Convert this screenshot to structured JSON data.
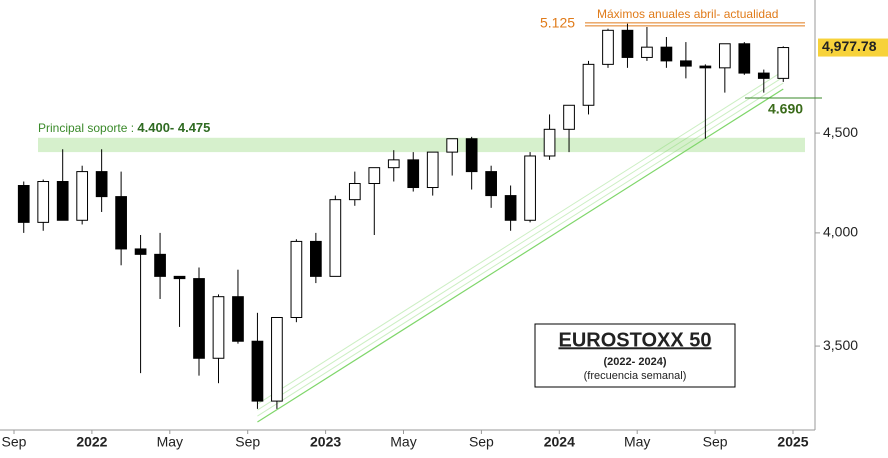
{
  "chart_data": {
    "type": "candlestick",
    "x": [
      "2021-09",
      "2021-10",
      "2021-11",
      "2021-12",
      "2022-01",
      "2022-02",
      "2022-03",
      "2022-04",
      "2022-05",
      "2022-06",
      "2022-07",
      "2022-08",
      "2022-09",
      "2022-10",
      "2022-11",
      "2022-12",
      "2023-01",
      "2023-02",
      "2023-03",
      "2023-04",
      "2023-05",
      "2023-06",
      "2023-07",
      "2023-08",
      "2023-09",
      "2023-10",
      "2023-11",
      "2023-12",
      "2024-01",
      "2024-02",
      "2024-03",
      "2024-04",
      "2024-05",
      "2024-06",
      "2024-07",
      "2024-08",
      "2024-09",
      "2024-10",
      "2024-11",
      "2024-12"
    ],
    "open": [
      4230,
      4050,
      4250,
      4060,
      4300,
      4175,
      3925,
      3900,
      3800,
      3790,
      3450,
      3710,
      3520,
      3280,
      3620,
      3960,
      3800,
      4160,
      4240,
      4320,
      4360,
      4220,
      4400,
      4470,
      4300,
      4180,
      4060,
      4380,
      4520,
      4650,
      4880,
      5080,
      4920,
      4980,
      4900,
      4870,
      4860,
      5000,
      4830,
      4800
    ],
    "high": [
      4250,
      4260,
      4415,
      4330,
      4415,
      4300,
      3990,
      4000,
      3800,
      3840,
      3720,
      3830,
      3640,
      3620,
      3970,
      4000,
      4180,
      4300,
      4320,
      4410,
      4400,
      4390,
      4470,
      4480,
      4330,
      4230,
      4400,
      4600,
      4650,
      4900,
      5090,
      5120,
      5100,
      5040,
      5010,
      4880,
      5000,
      5010,
      4850,
      4985
    ],
    "low": [
      4000,
      4010,
      4080,
      4040,
      4100,
      3850,
      3390,
      3700,
      3580,
      3380,
      3350,
      3510,
      3250,
      3250,
      3600,
      3770,
      3800,
      4130,
      3990,
      4250,
      4200,
      4180,
      4280,
      4210,
      4120,
      4010,
      4050,
      4360,
      4400,
      4600,
      4860,
      4860,
      4900,
      4860,
      4800,
      4470,
      4720,
      4820,
      4720,
      4780
    ],
    "close": [
      4050,
      4250,
      4060,
      4300,
      4175,
      3925,
      3900,
      3800,
      3790,
      3450,
      3710,
      3520,
      3280,
      3620,
      3960,
      3800,
      4160,
      4240,
      4320,
      4360,
      4220,
      4400,
      4470,
      4300,
      4180,
      4060,
      4380,
      4520,
      4650,
      4880,
      5080,
      4920,
      4980,
      4900,
      4870,
      4860,
      5000,
      4830,
      4800,
      4977.78
    ],
    "ylim": [
      3170,
      5265
    ],
    "log_scale": true,
    "yticks": [
      {
        "value": 3500,
        "label": "3,500"
      },
      {
        "value": 4000,
        "label": "4,000"
      },
      {
        "value": 4500,
        "label": "4,500"
      }
    ],
    "xticks": [
      {
        "value": "2021-09",
        "label": "Sep"
      },
      {
        "value": "2022-01",
        "label": "2022"
      },
      {
        "value": "2022-05",
        "label": "May"
      },
      {
        "value": "2022-09",
        "label": "Sep"
      },
      {
        "value": "2023-01",
        "label": "2023"
      },
      {
        "value": "2023-05",
        "label": "May"
      },
      {
        "value": "2023-09",
        "label": "Sep"
      },
      {
        "value": "2024-01",
        "label": "2024"
      },
      {
        "value": "2024-05",
        "label": "May"
      },
      {
        "value": "2024-09",
        "label": "Sep"
      },
      {
        "value": "2025-01",
        "label": "2025"
      }
    ],
    "last_price": {
      "value": 4977.78,
      "label": "4,977.78"
    },
    "max_line": {
      "value": 5125,
      "label": "5.125",
      "text": "Máximos anuales abril- actualidad",
      "color": "#e07b1a"
    },
    "support_zone": {
      "lower": 4400,
      "upper": 4475,
      "text": "Principal soporte : ",
      "label": "4.400- 4.475",
      "color": "#d6f0cc"
    },
    "trend_support": {
      "value": 4690,
      "label": "4.690",
      "color": "#7fd66a",
      "x": [
        "2022-09",
        "2024-12"
      ],
      "values": [
        3200,
        4740
      ]
    },
    "title": "EUROSTOXX 50",
    "subtitle": "(2022- 2024)",
    "note": "(frecuencia semanal)"
  }
}
